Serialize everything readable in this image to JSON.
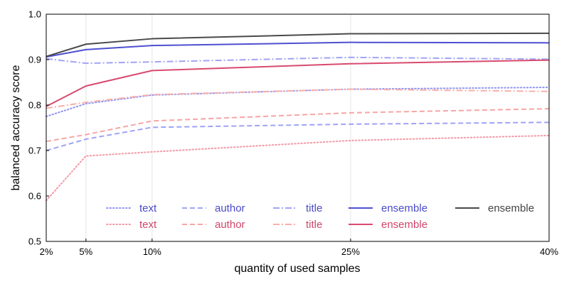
{
  "chart_data": {
    "type": "line",
    "xlabel": "quantity of used samples",
    "ylabel": "balanced accuracy score",
    "x": [
      2,
      5,
      10,
      25,
      40
    ],
    "x_tick_labels": [
      "2%",
      "5%",
      "10%",
      "25%",
      "40%"
    ],
    "ylim": [
      0.5,
      1.0
    ],
    "y_ticks": [
      "0.5",
      "0.6",
      "0.7",
      "0.8",
      "0.9",
      "1.0"
    ],
    "grid": "vertical",
    "legend_position": "bottom",
    "series": [
      {
        "name": "text",
        "color": "#8f95f2",
        "dash": "dotted",
        "values": [
          0.775,
          0.803,
          0.822,
          0.835,
          0.839
        ]
      },
      {
        "name": "text",
        "color": "#f39aa6",
        "dash": "dotted",
        "values": [
          0.59,
          0.688,
          0.697,
          0.722,
          0.733
        ]
      },
      {
        "name": "author",
        "color": "#9fa3f5",
        "dash": "dashed",
        "values": [
          0.7,
          0.725,
          0.751,
          0.758,
          0.762
        ]
      },
      {
        "name": "author",
        "color": "#f7a5a5",
        "dash": "dashed",
        "values": [
          0.72,
          0.735,
          0.765,
          0.783,
          0.792
        ]
      },
      {
        "name": "title",
        "color": "#a1a4f3",
        "dash": "dashdot",
        "values": [
          0.902,
          0.892,
          0.895,
          0.905,
          0.901
        ]
      },
      {
        "name": "title",
        "color": "#f7b0aa",
        "dash": "dashdot",
        "values": [
          0.793,
          0.806,
          0.823,
          0.835,
          0.83
        ]
      },
      {
        "name": "ensemble",
        "color": "#4e4fd0",
        "dash": "solid",
        "values": [
          0.906,
          0.922,
          0.931,
          0.938,
          0.937
        ]
      },
      {
        "name": "ensemble",
        "color": "#d84a6e",
        "dash": "solid",
        "values": [
          0.797,
          0.842,
          0.876,
          0.891,
          0.899
        ]
      },
      {
        "name": "ensemble",
        "color": "#4a4a4a",
        "dash": "solid",
        "values": [
          0.907,
          0.934,
          0.946,
          0.957,
          0.958
        ]
      }
    ]
  },
  "legend": {
    "columns": [
      [
        {
          "label": "text",
          "series": 0,
          "text_color": "#4b4bc8"
        },
        {
          "label": "text",
          "series": 1,
          "text_color": "#d0466a"
        }
      ],
      [
        {
          "label": "author",
          "series": 2,
          "text_color": "#4b4bc8"
        },
        {
          "label": "author",
          "series": 3,
          "text_color": "#d0466a"
        }
      ],
      [
        {
          "label": "title",
          "series": 4,
          "text_color": "#4b4bc8"
        },
        {
          "label": "title",
          "series": 5,
          "text_color": "#d0466a"
        }
      ],
      [
        {
          "label": "ensemble",
          "series": 6,
          "text_color": "#4b4bc8"
        },
        {
          "label": "ensemble",
          "series": 7,
          "text_color": "#d0466a"
        }
      ],
      [
        {
          "label": "ensemble",
          "series": 8,
          "text_color": "#444444"
        }
      ]
    ]
  }
}
